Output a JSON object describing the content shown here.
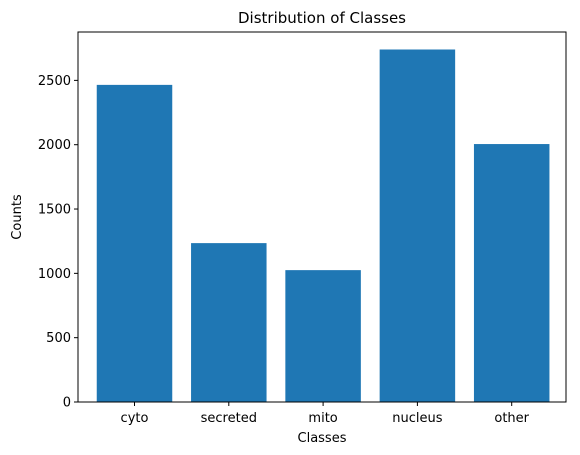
{
  "chart_data": {
    "type": "bar",
    "title": "Distribution of Classes",
    "xlabel": "Classes",
    "ylabel": "Counts",
    "categories": [
      "cyto",
      "secreted",
      "mito",
      "nucleus",
      "other"
    ],
    "values": [
      2465,
      1235,
      1025,
      2740,
      2005
    ],
    "ylim": [
      0,
      2876
    ],
    "yticks": [
      0,
      500,
      1000,
      1500,
      2000,
      2500
    ],
    "bar_color": "#1f77b4",
    "grid": false,
    "legend": "none"
  }
}
